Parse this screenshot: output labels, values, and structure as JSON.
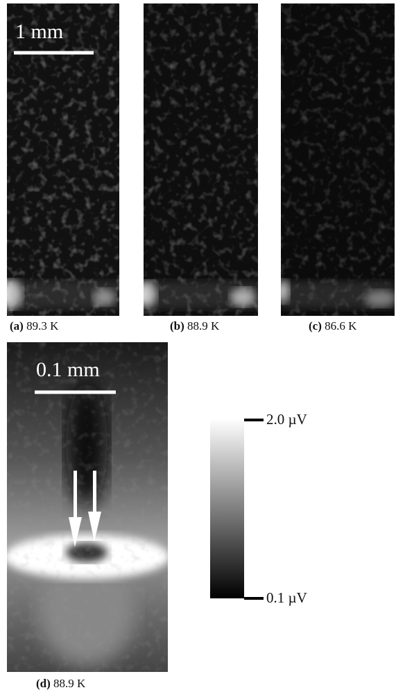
{
  "panels": [
    {
      "letter": "(a)",
      "caption": "89.3 K",
      "scale_bar": "1 mm"
    },
    {
      "letter": "(b)",
      "caption": "88.9 K"
    },
    {
      "letter": "(c)",
      "caption": "86.6 K"
    },
    {
      "letter": "(d)",
      "caption": "88.9 K",
      "scale_bar": "0.1 mm"
    }
  ],
  "colorbar": {
    "top_label": "2.0 µV",
    "bottom_label": "0.1 µV"
  }
}
